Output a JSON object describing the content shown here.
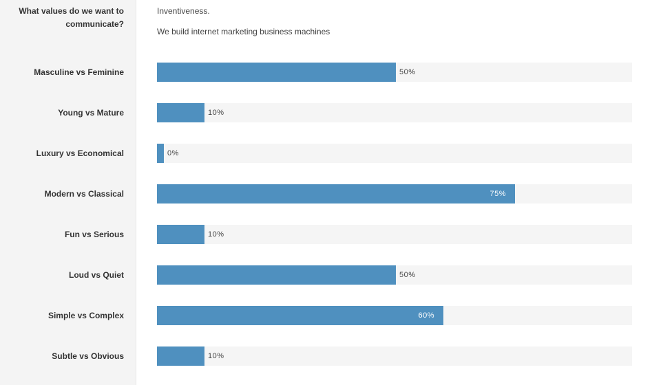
{
  "question": {
    "label": "What values do we want to communicate?",
    "answer_line1": "Inventiveness.",
    "answer_line2": "We build internet marketing business machines"
  },
  "scales": [
    {
      "label": "Masculine vs Feminine",
      "value": 50,
      "text": "50%"
    },
    {
      "label": "Young vs Mature",
      "value": 10,
      "text": "10%"
    },
    {
      "label": "Luxury vs Economical",
      "value": 0,
      "text": "0%"
    },
    {
      "label": "Modern vs Classical",
      "value": 75,
      "text": "75%"
    },
    {
      "label": "Fun vs Serious",
      "value": 10,
      "text": "10%"
    },
    {
      "label": "Loud vs Quiet",
      "value": 50,
      "text": "50%"
    },
    {
      "label": "Simple vs Complex",
      "value": 60,
      "text": "60%"
    },
    {
      "label": "Subtle vs Obvious",
      "value": 10,
      "text": "10%"
    }
  ],
  "colors": {
    "bar_fill": "#4f90bf",
    "bar_track": "#f5f5f5",
    "sidebar_bg": "#f4f4f4"
  }
}
